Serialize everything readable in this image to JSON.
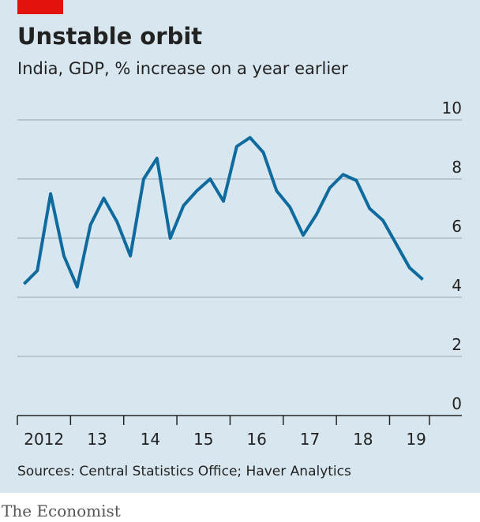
{
  "chart_data": {
    "type": "line",
    "title": "Unstable orbit",
    "subtitle": "India, GDP, % increase on a year earlier",
    "source": "Sources: Central Statistics Office; Haver Analytics",
    "brand": "The Economist",
    "x": [
      2012.125,
      2012.375,
      2012.625,
      2012.875,
      2013.125,
      2013.375,
      2013.625,
      2013.875,
      2014.125,
      2014.375,
      2014.625,
      2014.875,
      2015.125,
      2015.375,
      2015.625,
      2015.875,
      2016.125,
      2016.375,
      2016.625,
      2016.875,
      2017.125,
      2017.375,
      2017.625,
      2017.875,
      2018.125,
      2018.375,
      2018.625,
      2018.875,
      2019.125,
      2019.375,
      2019.625
    ],
    "series": [
      {
        "name": "GDP",
        "color": "#0f6a9e",
        "values": [
          4.45,
          4.9,
          7.5,
          5.4,
          4.35,
          6.45,
          7.35,
          6.55,
          5.4,
          8.0,
          8.7,
          6.0,
          7.1,
          7.6,
          8.0,
          7.25,
          9.1,
          9.4,
          8.9,
          7.6,
          7.05,
          6.1,
          6.8,
          7.7,
          8.15,
          7.95,
          7.0,
          6.6,
          5.8,
          5.0,
          4.6
        ]
      }
    ],
    "xlim": [
      2012,
      2019.75
    ],
    "xticks": [
      2012,
      2013,
      2014,
      2015,
      2016,
      2017,
      2018,
      2019
    ],
    "year_labels": [
      {
        "value": 2012.5,
        "label": "2012"
      },
      {
        "value": 2013.5,
        "label": "13"
      },
      {
        "value": 2014.5,
        "label": "14"
      },
      {
        "value": 2015.5,
        "label": "15"
      },
      {
        "value": 2016.5,
        "label": "16"
      },
      {
        "value": 2017.5,
        "label": "17"
      },
      {
        "value": 2018.5,
        "label": "18"
      },
      {
        "value": 2019.5,
        "label": "19"
      }
    ],
    "ylim": [
      0,
      10
    ],
    "yticks": [
      0,
      2,
      4,
      6,
      8,
      10
    ],
    "grid": true
  }
}
